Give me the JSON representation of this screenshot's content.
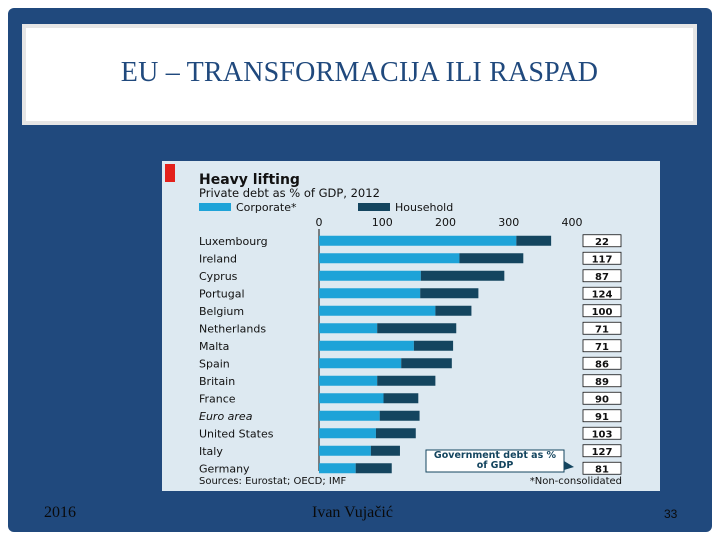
{
  "slide": {
    "title": "EU – TRANSFORMACIJA ILI RASPAD",
    "date": "2016",
    "author": "Ivan Vujačić",
    "page_number": "33"
  },
  "colors": {
    "corporate": "#1ea3d8",
    "household": "#14455f",
    "accent_red": "#e3201b",
    "chart_bg": "#dde9f1",
    "frame": "#20497d"
  },
  "chart_data": {
    "type": "bar",
    "orientation": "horizontal",
    "stacked": true,
    "title": "Heavy lifting",
    "subtitle": "Private debt as % of GDP, 2012",
    "categories": [
      "Luxembourg",
      "Ireland",
      "Cyprus",
      "Portugal",
      "Belgium",
      "Netherlands",
      "Malta",
      "Spain",
      "Britain",
      "France",
      "Euro area",
      "United States",
      "Italy",
      "Germany"
    ],
    "series": [
      {
        "name": "Corporate*",
        "values": [
          312,
          222,
          161,
          160,
          184,
          92,
          150,
          130,
          92,
          102,
          96,
          90,
          82,
          58
        ]
      },
      {
        "name": "Household",
        "values": [
          55,
          101,
          132,
          92,
          57,
          125,
          62,
          80,
          92,
          55,
          63,
          63,
          46,
          57
        ]
      }
    ],
    "xlim": [
      0,
      400
    ],
    "xticks": [
      "0",
      "100",
      "200",
      "300",
      "400"
    ],
    "side_column_title": "Government debt as % of GDP",
    "side_values": [
      "22",
      "117",
      "87",
      "124",
      "100",
      "71",
      "71",
      "86",
      "89",
      "90",
      "91",
      "103",
      "127",
      "81"
    ],
    "source": "Sources: Eurostat; OECD; IMF",
    "footnote": "*Non-consolidated"
  }
}
